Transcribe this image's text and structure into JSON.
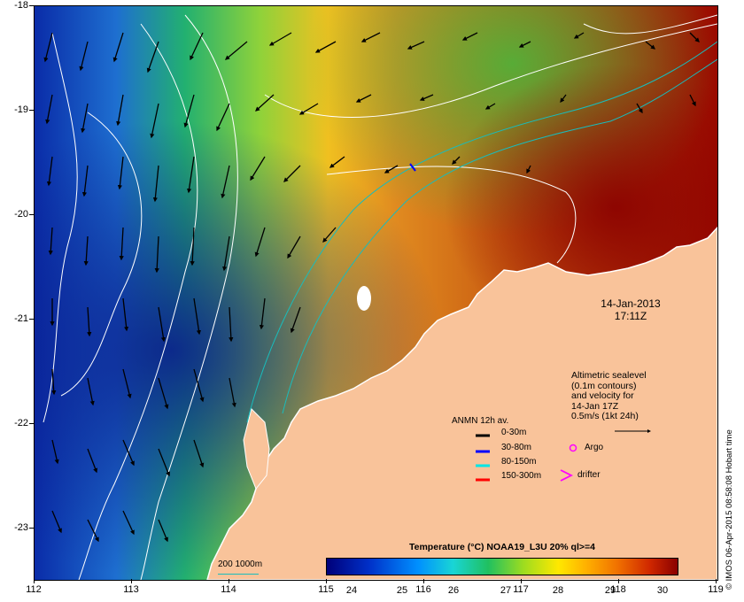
{
  "axes": {
    "lat_labels": [
      "-18",
      "-19",
      "-20",
      "-21",
      "-22",
      "-23"
    ],
    "lon_labels": [
      "112",
      "113",
      "114",
      "115",
      "116",
      "117",
      "118",
      "119"
    ]
  },
  "timestamp": {
    "line1": "14-Jan-2013",
    "line2": "17:11Z"
  },
  "altimetry_note": [
    "Altimetric sealevel",
    "(0.1m contours)",
    "and velocity for",
    "14-Jan 17Z",
    "0.5m/s (1kt 24h)"
  ],
  "legend": {
    "title": "ANMN 12h av.",
    "items": [
      {
        "label": "0-30m",
        "color": "#000000"
      },
      {
        "label": "30-80m",
        "color": "#0000ff"
      },
      {
        "label": "80-150m",
        "color": "#00e5e5"
      },
      {
        "label": "150-300m",
        "color": "#ff0000"
      }
    ],
    "argo_label": "Argo",
    "drifter_label": "drifter"
  },
  "colorbar": {
    "title": "Temperature (°C) NOAA19_L3U 20% ql>=4",
    "ticks": [
      "24",
      "25",
      "26",
      "27",
      "28",
      "29",
      "30"
    ]
  },
  "scale": {
    "label": "200 1000m"
  },
  "credit": "© IMOS 06-Apr-2015 08:58:08 Hobart time",
  "colors": {
    "land": "#f9c39a",
    "cold": "#00007a",
    "warm": "#8a0000",
    "contour": "#ffffff",
    "bathy": "#19bcbc"
  }
}
